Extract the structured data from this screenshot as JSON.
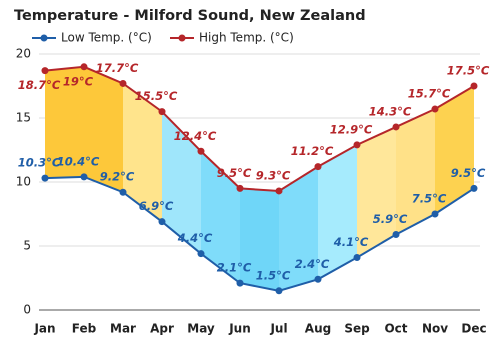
{
  "chart_data": {
    "type": "line",
    "title": "Temperature - Milford Sound, New Zealand",
    "categories": [
      "Jan",
      "Feb",
      "Mar",
      "Apr",
      "May",
      "Jun",
      "Jul",
      "Aug",
      "Sep",
      "Oct",
      "Nov",
      "Dec"
    ],
    "series": [
      {
        "name": "Low Temp. (°C)",
        "color": "#1f5ea8",
        "values": [
          10.3,
          10.4,
          9.2,
          6.9,
          4.4,
          2.1,
          1.5,
          2.4,
          4.1,
          5.9,
          7.5,
          9.5
        ],
        "value_labels": [
          "10.3°C",
          "10.4°C",
          "9.2°C",
          "6.9°C",
          "4.4°C",
          "2.1°C",
          "1.5°C",
          "2.4°C",
          "4.1°C",
          "5.9°C",
          "7.5°C",
          "9.5°C"
        ]
      },
      {
        "name": "High Temp. (°C)",
        "color": "#b5262a",
        "values": [
          18.7,
          19,
          17.7,
          15.5,
          12.4,
          9.5,
          9.3,
          11.2,
          12.9,
          14.3,
          15.7,
          17.5
        ],
        "value_labels": [
          "18.7°C",
          "19°C",
          "17.7°C",
          "15.5°C",
          "12.4°C",
          "9.5°C",
          "9.3°C",
          "11.2°C",
          "12.9°C",
          "14.3°C",
          "15.7°C",
          "17.5°C"
        ]
      }
    ],
    "fill_colors": [
      "#fdc83a",
      "#fdc83a",
      "#ffe48c",
      "#9fe6fb",
      "#7fdcfa",
      "#6fd6f8",
      "#7fdcfa",
      "#a6ebfd",
      "#ffe79a",
      "#ffe188",
      "#fdd250"
    ],
    "ylim": [
      0,
      20
    ],
    "yticks": [
      0,
      5,
      10,
      15,
      20
    ],
    "grid": true
  }
}
